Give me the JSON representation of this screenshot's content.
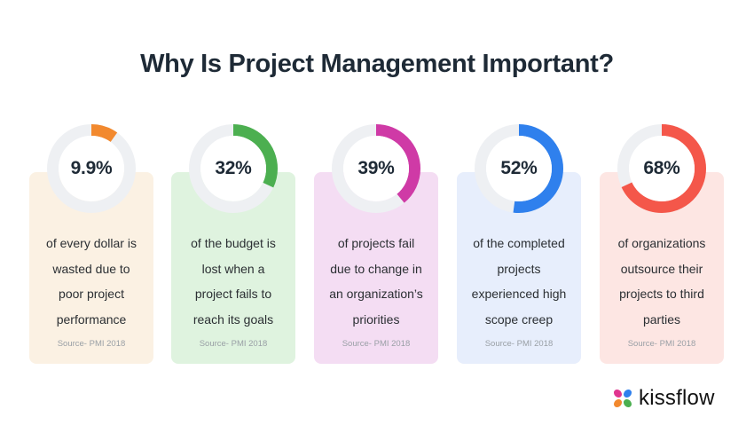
{
  "title": "Why Is Project Management Important?",
  "stats": [
    {
      "value": "9.9%",
      "percent": 9.9,
      "description_lines": [
        "of every dollar is",
        "wasted due to",
        "poor project",
        "performance"
      ],
      "source": "Source- PMI 2018",
      "card_color": "#fbf1e3",
      "arc_color": "#f2892e"
    },
    {
      "value": "32%",
      "percent": 32,
      "description_lines": [
        "of the budget is",
        "lost when a",
        "project fails to",
        "reach its goals"
      ],
      "source": "Source- PMI 2018",
      "card_color": "#dff3df",
      "arc_color": "#4caf50"
    },
    {
      "value": "39%",
      "percent": 39,
      "description_lines": [
        "of projects fail",
        "due to change in",
        "an organization’s",
        "priorities"
      ],
      "source": "Source- PMI 2018",
      "card_color": "#f4ddf3",
      "arc_color": "#cf3aa6"
    },
    {
      "value": "52%",
      "percent": 52,
      "description_lines": [
        "of the completed",
        "projects",
        "experienced high",
        "scope creep"
      ],
      "source": "Source- PMI 2018",
      "card_color": "#e7eefc",
      "arc_color": "#2f80ed"
    },
    {
      "value": "68%",
      "percent": 68,
      "description_lines": [
        "of organizations",
        "outsource their",
        "projects to third",
        "parties"
      ],
      "source": "Source- PMI 2018",
      "card_color": "#fde6e3",
      "arc_color": "#f4574a"
    }
  ],
  "logo": {
    "text": "kissflow",
    "icon": "kissflow-butterfly-icon"
  }
}
